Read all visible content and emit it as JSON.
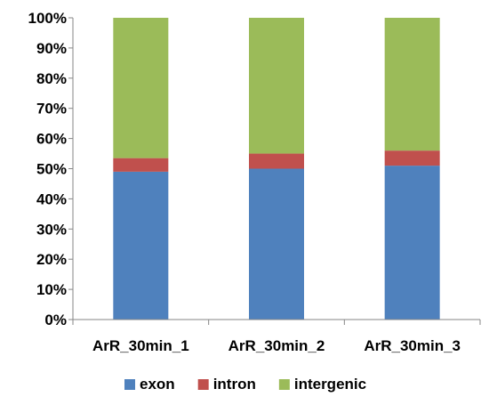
{
  "chart_data": {
    "type": "bar",
    "stacked": true,
    "percent_stacked": true,
    "categories": [
      "ArR_30min_1",
      "ArR_30min_2",
      "ArR_30min_3"
    ],
    "series": [
      {
        "name": "exon",
        "color": "#4f81bd",
        "values": [
          49,
          50,
          51
        ]
      },
      {
        "name": "intron",
        "color": "#c0504d",
        "values": [
          4.5,
          5,
          5
        ]
      },
      {
        "name": "intergenic",
        "color": "#9bbb59",
        "values": [
          46.5,
          45,
          44
        ]
      }
    ],
    "y_ticks": [
      "0%",
      "10%",
      "20%",
      "30%",
      "40%",
      "50%",
      "60%",
      "70%",
      "80%",
      "90%",
      "100%"
    ],
    "ylim": [
      0,
      100
    ],
    "grid": false,
    "legend_position": "bottom"
  }
}
